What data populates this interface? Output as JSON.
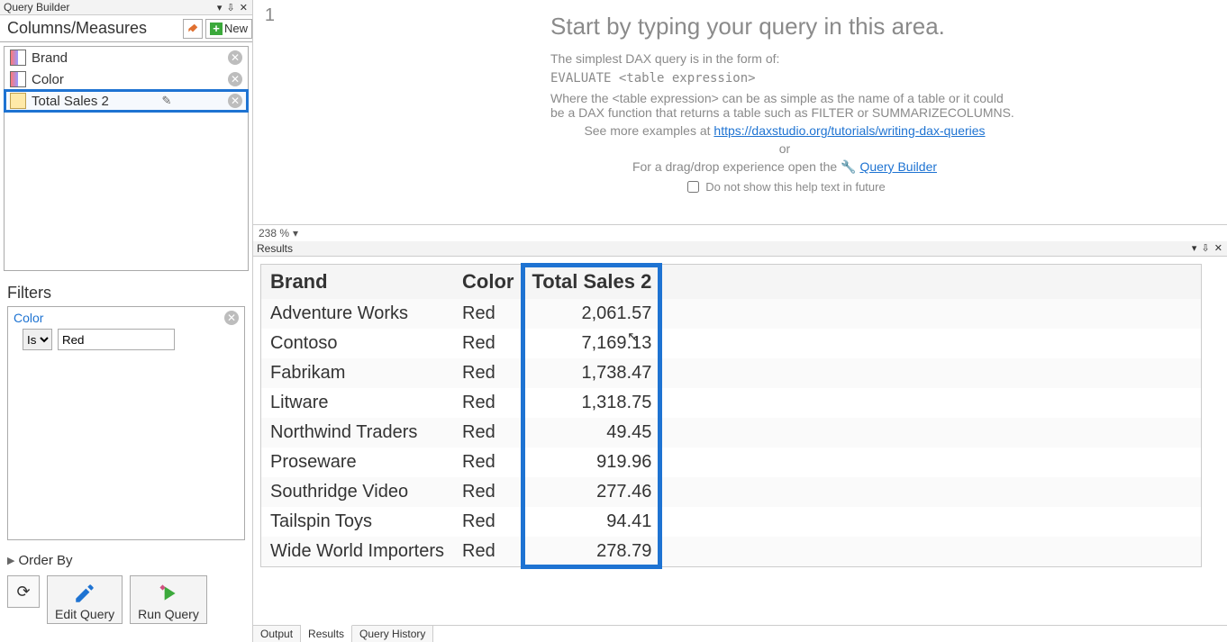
{
  "query_builder": {
    "panel_title": "Query Builder",
    "section_title": "Columns/Measures",
    "new_button": "New",
    "items": [
      {
        "label": "Brand",
        "type": "column"
      },
      {
        "label": "Color",
        "type": "column"
      },
      {
        "label": "Total Sales 2",
        "type": "measure",
        "selected": true
      }
    ]
  },
  "filters": {
    "title": "Filters",
    "name": "Color",
    "operator": "Is",
    "value": "Red"
  },
  "order_by": {
    "title": "Order By"
  },
  "actions": {
    "edit": "Edit Query",
    "run": "Run Query"
  },
  "editor": {
    "line_no": "1",
    "zoom": "238 %",
    "heading": "Start by typing your query in this area.",
    "line1": "The simplest DAX query is in the form of:",
    "code": "EVALUATE <table expression>",
    "line2": "Where the <table expression> can be as simple as the name of a table or it could be a DAX function that returns a table such as FILTER or SUMMARIZECOLUMNS.",
    "examples_pre": "See more examples at ",
    "examples_link": "https://daxstudio.org/tutorials/writing-dax-queries",
    "or": "or",
    "drag_pre": "For a drag/drop experience open the ",
    "drag_link": "Query Builder",
    "checkbox": "Do not show this help text in future"
  },
  "results": {
    "panel_title": "Results",
    "columns": [
      "Brand",
      "Color",
      "Total Sales 2"
    ],
    "highlight_col_index": 2,
    "rows": [
      [
        "Adventure Works",
        "Red",
        "2,061.57"
      ],
      [
        "Contoso",
        "Red",
        "7,169.13"
      ],
      [
        "Fabrikam",
        "Red",
        "1,738.47"
      ],
      [
        "Litware",
        "Red",
        "1,318.75"
      ],
      [
        "Northwind Traders",
        "Red",
        "49.45"
      ],
      [
        "Proseware",
        "Red",
        "919.96"
      ],
      [
        "Southridge Video",
        "Red",
        "277.46"
      ],
      [
        "Tailspin Toys",
        "Red",
        "94.41"
      ],
      [
        "Wide World Importers",
        "Red",
        "278.79"
      ]
    ]
  },
  "tabs": {
    "items": [
      "Output",
      "Results",
      "Query History"
    ],
    "active": 1
  },
  "colors": {
    "highlight": "#1e73d2",
    "link": "#1e73d2"
  }
}
